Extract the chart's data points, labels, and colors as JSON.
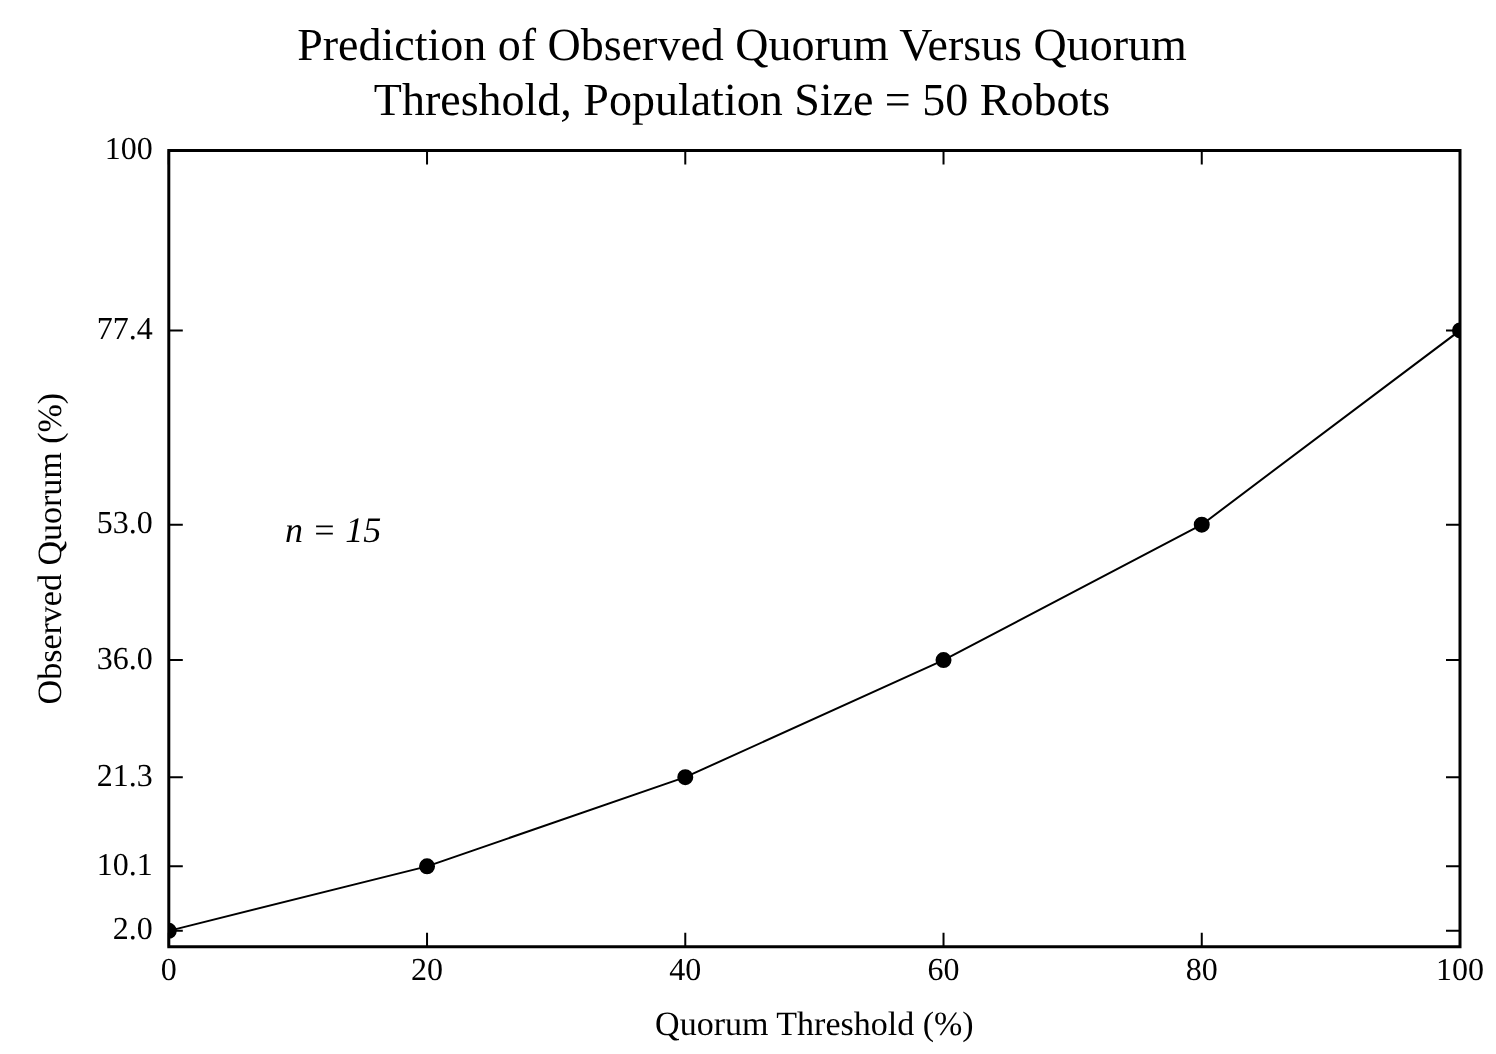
{
  "chart_data": {
    "type": "line",
    "title": "Prediction of Observed Quorum Versus Quorum Threshold, Population Size = 50 Robots",
    "xlabel": "Quorum Threshold (%)",
    "ylabel": "Observed Quorum (%)",
    "annotations": [
      "n = 15"
    ],
    "x": [
      0,
      20,
      40,
      60,
      80,
      100
    ],
    "series": [
      {
        "color": "#000000",
        "values": [
          2.0,
          10.1,
          21.3,
          36.0,
          53.0,
          77.4
        ]
      }
    ],
    "xlim": [
      0,
      100
    ],
    "xticks": [
      0,
      20,
      40,
      60,
      80,
      100
    ],
    "ylim": [
      0,
      100
    ],
    "yticks": [
      {
        "value": 2,
        "label": "2.0"
      },
      {
        "value": 10.1,
        "label": "10.1"
      },
      {
        "value": 21.3,
        "label": "21.3"
      },
      {
        "value": 36,
        "label": "36.0"
      },
      {
        "value": 53,
        "label": "53.0"
      },
      {
        "value": 77.4,
        "label": "77.4"
      },
      {
        "value": 100,
        "label": "100"
      }
    ],
    "grid": false,
    "legend": false,
    "marker": "circle",
    "line_style": "solid"
  }
}
